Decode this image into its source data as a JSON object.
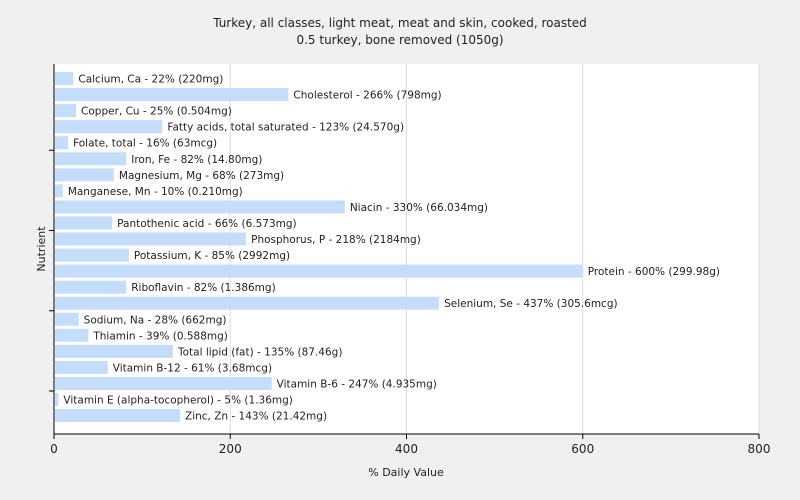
{
  "chart_data": {
    "type": "bar",
    "orientation": "horizontal",
    "title": "Turkey, all classes, light meat, meat and skin, cooked, roasted",
    "subtitle": "0.5 turkey, bone removed (1050g)",
    "xlabel": "% Daily Value",
    "ylabel": "Nutrient",
    "xlim": [
      0,
      800
    ],
    "xticks": [
      "0",
      "200",
      "400",
      "600",
      "800"
    ],
    "grid": true,
    "bar_color": "#c4ddfb",
    "categories": [
      "Calcium, Ca",
      "Cholesterol",
      "Copper, Cu",
      "Fatty acids, total saturated",
      "Folate, total",
      "Iron, Fe",
      "Magnesium, Mg",
      "Manganese, Mn",
      "Niacin",
      "Pantothenic acid",
      "Phosphorus, P",
      "Potassium, K",
      "Protein",
      "Riboflavin",
      "Selenium, Se",
      "Sodium, Na",
      "Thiamin",
      "Total lipid (fat)",
      "Vitamin B-12",
      "Vitamin B-6",
      "Vitamin E (alpha-tocopherol)",
      "Zinc, Zn"
    ],
    "values": [
      22,
      266,
      25,
      123,
      16,
      82,
      68,
      10,
      330,
      66,
      218,
      85,
      600,
      82,
      437,
      28,
      39,
      135,
      61,
      247,
      5,
      143
    ],
    "labels": [
      "Calcium, Ca - 22% (220mg)",
      "Cholesterol - 266% (798mg)",
      "Copper, Cu - 25% (0.504mg)",
      "Fatty acids, total saturated - 123% (24.570g)",
      "Folate, total - 16% (63mcg)",
      "Iron, Fe - 82% (14.80mg)",
      "Magnesium, Mg - 68% (273mg)",
      "Manganese, Mn - 10% (0.210mg)",
      "Niacin - 330% (66.034mg)",
      "Pantothenic acid - 66% (6.573mg)",
      "Phosphorus, P - 218% (2184mg)",
      "Potassium, K - 85% (2992mg)",
      "Protein - 600% (299.98g)",
      "Riboflavin - 82% (1.386mg)",
      "Selenium, Se - 437% (305.6mcg)",
      "Sodium, Na - 28% (662mg)",
      "Thiamin - 39% (0.588mg)",
      "Total lipid (fat) - 135% (87.46g)",
      "Vitamin B-12 - 61% (3.68mcg)",
      "Vitamin B-6 - 247% (4.935mg)",
      "Vitamin E (alpha-tocopherol) - 5% (1.36mg)",
      "Zinc, Zn - 143% (21.42mg)"
    ]
  }
}
